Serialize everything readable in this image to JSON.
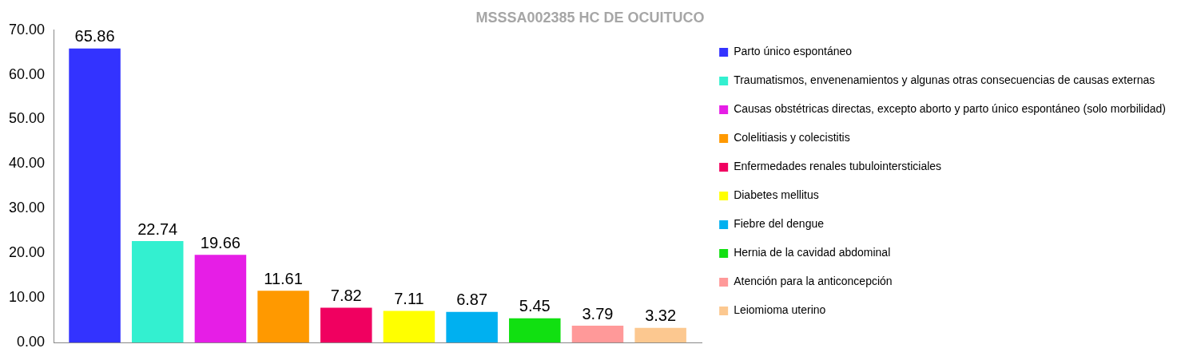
{
  "chart_data": {
    "type": "bar",
    "title": "MSSSA002385 HC DE OCUITUCO",
    "categories": [
      null
    ],
    "series": [
      {
        "name": "Parto único espontáneo",
        "color": "#3333ff",
        "values": [
          65.86
        ]
      },
      {
        "name": "Traumatismos, envenenamientos y algunas otras consecuencias de causas externas",
        "color": "#33f0d0",
        "values": [
          22.74
        ]
      },
      {
        "name": "Causas obstétricas directas, excepto aborto y parto único espontáneo (solo morbilidad)",
        "color": "#e61ee6",
        "values": [
          19.66
        ]
      },
      {
        "name": "Colelitiasis y colecistitis",
        "color": "#ff9900",
        "values": [
          11.61
        ]
      },
      {
        "name": "Enfermedades renales tubulointersticiales",
        "color": "#f00060",
        "values": [
          7.82
        ]
      },
      {
        "name": "Diabetes mellitus",
        "color": "#ffff00",
        "values": [
          7.11
        ]
      },
      {
        "name": "Fiebre del dengue",
        "color": "#00b0f0",
        "values": [
          6.87
        ]
      },
      {
        "name": "Hernia de la cavidad abdominal",
        "color": "#11e011",
        "values": [
          5.45
        ]
      },
      {
        "name": "Atención para la anticoncepción",
        "color": "#ff9999",
        "values": [
          3.79
        ]
      },
      {
        "name": "Leiomioma uterino",
        "color": "#fcc890",
        "values": [
          3.32
        ]
      }
    ],
    "ylim": [
      0,
      70
    ],
    "yticks": [
      {
        "value": 0,
        "label": "0.00"
      },
      {
        "value": 10,
        "label": "10.00"
      },
      {
        "value": 20,
        "label": "20.00"
      },
      {
        "value": 30,
        "label": "30.00"
      },
      {
        "value": 40,
        "label": "40.00"
      },
      {
        "value": 50,
        "label": "50.00"
      },
      {
        "value": 60,
        "label": "60.00"
      },
      {
        "value": 70,
        "label": "70.00"
      }
    ],
    "tick_labels": "y",
    "grid": false,
    "legend": "right",
    "data_labels": true
  }
}
